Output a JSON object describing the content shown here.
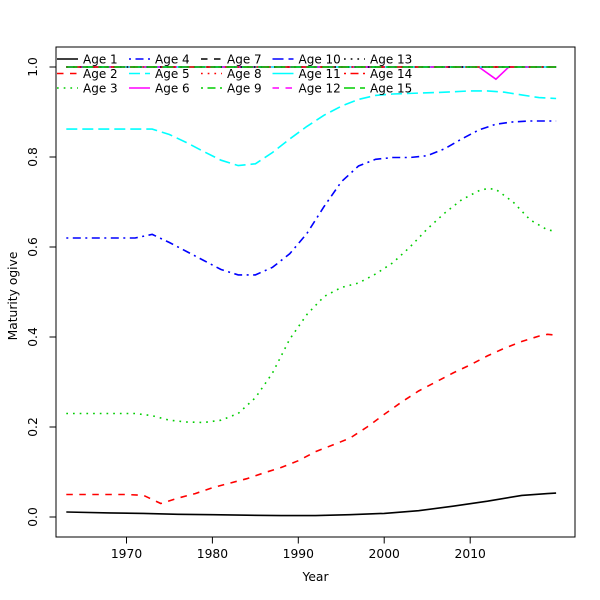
{
  "figure": {
    "background": "#ffffff",
    "axis_color": "#000000"
  },
  "chart_data": {
    "type": "line",
    "title": "",
    "xlabel": "Year",
    "ylabel": "Maturity ogive",
    "xlim": [
      1961.8,
      2022.2
    ],
    "ylim": [
      -0.0445,
      1.0445
    ],
    "grid": false,
    "legend_position": "top",
    "legend_columns": 5,
    "x_ticks": [
      {
        "value": 1970,
        "label": "1970"
      },
      {
        "value": 1980,
        "label": "1980"
      },
      {
        "value": 1990,
        "label": "1990"
      },
      {
        "value": 2000,
        "label": "2000"
      },
      {
        "value": 2010,
        "label": "2010"
      }
    ],
    "y_ticks": [
      {
        "value": 0.0,
        "label": "0.0"
      },
      {
        "value": 0.2,
        "label": "0.2"
      },
      {
        "value": 0.4,
        "label": "0.4"
      },
      {
        "value": 0.6,
        "label": "0.6"
      },
      {
        "value": 0.8,
        "label": "0.8"
      },
      {
        "value": 1.0,
        "label": "1.0"
      }
    ],
    "series": [
      {
        "name": "Age 6",
        "color": "#FF00FF",
        "linestyle": "solid",
        "points": [
          [
            1963,
            1.0
          ],
          [
            2010,
            1.0
          ],
          [
            2011,
            1.0
          ],
          [
            2013,
            0.973
          ],
          [
            2014.5,
            1.0
          ],
          [
            2020,
            1.0
          ]
        ]
      },
      {
        "name": "Age 1",
        "color": "#000000",
        "linestyle": "solid",
        "points": [
          [
            1963,
            0.011
          ],
          [
            1968,
            0.009
          ],
          [
            1972,
            0.008
          ],
          [
            1976,
            0.006
          ],
          [
            1980,
            0.005
          ],
          [
            1984,
            0.004
          ],
          [
            1988,
            0.003
          ],
          [
            1992,
            0.003
          ],
          [
            1996,
            0.005
          ],
          [
            2000,
            0.008
          ],
          [
            2004,
            0.014
          ],
          [
            2008,
            0.024
          ],
          [
            2012,
            0.035
          ],
          [
            2016,
            0.048
          ],
          [
            2019,
            0.052
          ],
          [
            2020,
            0.053
          ]
        ]
      },
      {
        "name": "Age 2",
        "color": "#FF0000",
        "linestyle": "dashed",
        "points": [
          [
            1963,
            0.05
          ],
          [
            1967,
            0.05
          ],
          [
            1970,
            0.05
          ],
          [
            1972,
            0.048
          ],
          [
            1974,
            0.03
          ],
          [
            1976,
            0.042
          ],
          [
            1978,
            0.052
          ],
          [
            1980,
            0.065
          ],
          [
            1982,
            0.075
          ],
          [
            1984,
            0.085
          ],
          [
            1986,
            0.098
          ],
          [
            1988,
            0.11
          ],
          [
            1990,
            0.125
          ],
          [
            1992,
            0.145
          ],
          [
            1994,
            0.16
          ],
          [
            1996,
            0.175
          ],
          [
            1998,
            0.2
          ],
          [
            2000,
            0.228
          ],
          [
            2002,
            0.255
          ],
          [
            2004,
            0.28
          ],
          [
            2006,
            0.3
          ],
          [
            2008,
            0.32
          ],
          [
            2010,
            0.338
          ],
          [
            2012,
            0.358
          ],
          [
            2014,
            0.375
          ],
          [
            2016,
            0.39
          ],
          [
            2018,
            0.402
          ],
          [
            2019,
            0.406
          ],
          [
            2020,
            0.404
          ]
        ]
      },
      {
        "name": "Age 3",
        "color": "#00CD00",
        "linestyle": "dotted",
        "points": [
          [
            1963,
            0.23
          ],
          [
            1968,
            0.23
          ],
          [
            1971,
            0.23
          ],
          [
            1973,
            0.225
          ],
          [
            1975,
            0.215
          ],
          [
            1977,
            0.211
          ],
          [
            1979,
            0.21
          ],
          [
            1981,
            0.215
          ],
          [
            1983,
            0.23
          ],
          [
            1985,
            0.265
          ],
          [
            1987,
            0.32
          ],
          [
            1989,
            0.395
          ],
          [
            1991,
            0.45
          ],
          [
            1993,
            0.49
          ],
          [
            1995,
            0.51
          ],
          [
            1997,
            0.52
          ],
          [
            1999,
            0.54
          ],
          [
            2001,
            0.565
          ],
          [
            2003,
            0.6
          ],
          [
            2005,
            0.64
          ],
          [
            2007,
            0.675
          ],
          [
            2009,
            0.705
          ],
          [
            2011,
            0.725
          ],
          [
            2012,
            0.73
          ],
          [
            2013,
            0.728
          ],
          [
            2015,
            0.7
          ],
          [
            2017,
            0.66
          ],
          [
            2019,
            0.638
          ],
          [
            2020,
            0.635
          ]
        ]
      },
      {
        "name": "Age 4",
        "color": "#0000FF",
        "linestyle": "dashdot",
        "points": [
          [
            1963,
            0.62
          ],
          [
            1967,
            0.62
          ],
          [
            1971,
            0.62
          ],
          [
            1973,
            0.628
          ],
          [
            1975,
            0.61
          ],
          [
            1977,
            0.59
          ],
          [
            1979,
            0.57
          ],
          [
            1981,
            0.55
          ],
          [
            1983,
            0.538
          ],
          [
            1985,
            0.538
          ],
          [
            1987,
            0.555
          ],
          [
            1989,
            0.585
          ],
          [
            1991,
            0.63
          ],
          [
            1993,
            0.69
          ],
          [
            1995,
            0.745
          ],
          [
            1997,
            0.78
          ],
          [
            1999,
            0.795
          ],
          [
            2001,
            0.799
          ],
          [
            2003,
            0.799
          ],
          [
            2005,
            0.803
          ],
          [
            2007,
            0.818
          ],
          [
            2009,
            0.84
          ],
          [
            2011,
            0.86
          ],
          [
            2013,
            0.873
          ],
          [
            2015,
            0.878
          ],
          [
            2017,
            0.88
          ],
          [
            2020,
            0.88
          ]
        ]
      },
      {
        "name": "Age 5",
        "color": "#00FFFF",
        "linestyle": "longdash",
        "points": [
          [
            1963,
            0.862
          ],
          [
            1968,
            0.862
          ],
          [
            1973,
            0.862
          ],
          [
            1975,
            0.85
          ],
          [
            1977,
            0.832
          ],
          [
            1979,
            0.812
          ],
          [
            1981,
            0.793
          ],
          [
            1983,
            0.781
          ],
          [
            1985,
            0.785
          ],
          [
            1987,
            0.81
          ],
          [
            1989,
            0.84
          ],
          [
            1991,
            0.868
          ],
          [
            1993,
            0.893
          ],
          [
            1995,
            0.913
          ],
          [
            1997,
            0.928
          ],
          [
            1999,
            0.937
          ],
          [
            2001,
            0.94
          ],
          [
            2004,
            0.942
          ],
          [
            2007,
            0.944
          ],
          [
            2010,
            0.947
          ],
          [
            2012,
            0.947
          ],
          [
            2014,
            0.944
          ],
          [
            2016,
            0.938
          ],
          [
            2018,
            0.932
          ],
          [
            2020,
            0.93
          ]
        ]
      },
      {
        "name": "Age 7",
        "color": "#000000",
        "linestyle": "dashed",
        "points": [
          [
            1963,
            1.0
          ],
          [
            2020,
            1.0
          ]
        ]
      },
      {
        "name": "Age 8",
        "color": "#FF0000",
        "linestyle": "dotted",
        "points": [
          [
            1963,
            1.0
          ],
          [
            2020,
            1.0
          ]
        ]
      },
      {
        "name": "Age 9",
        "color": "#00CD00",
        "linestyle": "dashdot",
        "points": [
          [
            1963,
            1.0
          ],
          [
            2020,
            1.0
          ]
        ]
      },
      {
        "name": "Age 10",
        "color": "#0000FF",
        "linestyle": "longdash",
        "points": [
          [
            1963,
            1.0
          ],
          [
            2020,
            1.0
          ]
        ]
      },
      {
        "name": "Age 11",
        "color": "#00FFFF",
        "linestyle": "solid",
        "points": [
          [
            1963,
            1.0
          ],
          [
            2020,
            1.0
          ]
        ]
      },
      {
        "name": "Age 12",
        "color": "#FF00FF",
        "linestyle": "dashed",
        "points": [
          [
            1963,
            1.0
          ],
          [
            2020,
            1.0
          ]
        ]
      },
      {
        "name": "Age 13",
        "color": "#000000",
        "linestyle": "dotted",
        "points": [
          [
            1963,
            1.0
          ],
          [
            2020,
            1.0
          ]
        ]
      },
      {
        "name": "Age 14",
        "color": "#FF0000",
        "linestyle": "dashdot",
        "points": [
          [
            1963,
            1.0
          ],
          [
            2020,
            1.0
          ]
        ]
      },
      {
        "name": "Age 15",
        "color": "#00CD00",
        "linestyle": "longdash",
        "points": [
          [
            1963,
            1.0
          ],
          [
            2020,
            1.0
          ]
        ]
      }
    ],
    "legend_order": [
      "Age 1",
      "Age 2",
      "Age 3",
      "Age 4",
      "Age 5",
      "Age 6",
      "Age 7",
      "Age 8",
      "Age 9",
      "Age 10",
      "Age 11",
      "Age 12",
      "Age 13",
      "Age 14",
      "Age 15"
    ]
  }
}
